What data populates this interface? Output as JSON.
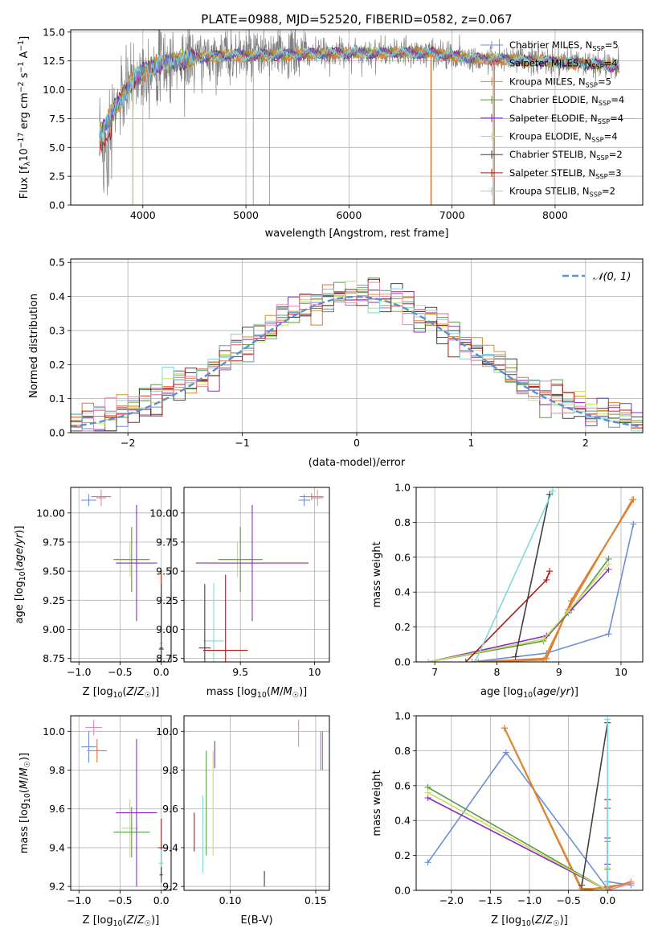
{
  "colors": {
    "chabrier_miles": "#6a8fd6",
    "salpeter_miles": "#e0763a",
    "kroupa_miles": "#d98c2e",
    "chabrier_elodie": "#5a9a4a",
    "salpeter_elodie": "#8a2bc2",
    "kroupa_elodie": "#c8e05a",
    "chabrier_stelib": "#404040",
    "salpeter_stelib": "#b01818",
    "kroupa_stelib": "#7fd8dc",
    "pink": "#e08bb0",
    "gauss": "#5b8fd6",
    "grid": "#b0b0b0",
    "data_gray": "#808080"
  },
  "chart_data": [
    {
      "id": "spectrum",
      "type": "line",
      "title": "PLATE=0988, MJD=52520, FIBERID=0582, z=0.067",
      "xlabel": "wavelength [Angstrom, rest frame]",
      "ylabel": "Flux [f_λ 10^-17 erg cm^-2 s^-1 A^-1]",
      "xlim": [
        3300,
        8850
      ],
      "ylim": [
        0,
        15.2
      ],
      "xticks": [
        4000,
        5000,
        6000,
        7000,
        8000
      ],
      "yticks": [
        0.0,
        2.5,
        5.0,
        7.5,
        10.0,
        12.5,
        15.0
      ],
      "legend_position": "right",
      "legend": [
        "Chabrier MILES, N_SSP=5",
        "Salpeter MILES, N_SSP=4",
        "Kroupa MILES, N_SSP=5",
        "Chabrier ELODIE, N_SSP=4",
        "Salpeter ELODIE, N_SSP=4",
        "Kroupa ELODIE, N_SSP=4",
        "Chabrier STELIB, N_SSP=2",
        "Salpeter STELIB, N_SSP=3",
        "Kroupa STELIB, N_SSP=2"
      ],
      "continuum": [
        [
          3580,
          6.3
        ],
        [
          3650,
          7.3
        ],
        [
          3720,
          8.2
        ],
        [
          3800,
          9.3
        ],
        [
          3900,
          10.8
        ],
        [
          4000,
          11.6
        ],
        [
          4100,
          12.1
        ],
        [
          4300,
          12.3
        ],
        [
          4500,
          12.8
        ],
        [
          4800,
          13.0
        ],
        [
          5200,
          13.0
        ],
        [
          5600,
          13.1
        ],
        [
          6000,
          13.2
        ],
        [
          6400,
          13.2
        ],
        [
          6800,
          13.2
        ],
        [
          7200,
          12.7
        ],
        [
          7600,
          12.6
        ],
        [
          8000,
          12.4
        ],
        [
          8400,
          12.2
        ],
        [
          8600,
          12.0
        ]
      ],
      "dropouts": [
        3900,
        5070,
        5230,
        6800,
        7400
      ]
    },
    {
      "id": "residuals",
      "type": "area",
      "xlabel": "(data-model)/error",
      "ylabel": "Normed distribution",
      "xlim": [
        -2.5,
        2.5
      ],
      "ylim": [
        0,
        0.51
      ],
      "xticks": [
        -2,
        -1,
        0,
        1,
        2
      ],
      "yticks": [
        0.0,
        0.1,
        0.2,
        0.3,
        0.4,
        0.5
      ],
      "legend": [
        "N(0,1)"
      ],
      "legend_position": "top-right",
      "bin_width": 0.1
    },
    {
      "id": "age_vs_Z",
      "type": "scatter",
      "xlabel": "Z [log10(Z/Z☉)]",
      "ylabel": "age  [log10(age/yr)]",
      "xlim": [
        -1.1,
        0.12
      ],
      "ylim": [
        8.72,
        10.22
      ],
      "xticks": [
        -1.0,
        -0.5,
        0.0
      ],
      "xticklabels": [
        "−1.0",
        "−0.5",
        "0.0"
      ],
      "yticks": [
        8.75,
        9.0,
        9.25,
        9.5,
        9.75,
        10.0
      ],
      "points": [
        {
          "c": "chabrier_miles",
          "x": -0.88,
          "y": 10.11,
          "xe": 0.09,
          "ye": 0.05
        },
        {
          "c": "salpeter_miles",
          "x": -0.73,
          "y": 10.14,
          "xe": 0.12,
          "ye": 0.03
        },
        {
          "c": "pink",
          "x": -0.73,
          "y": 10.13,
          "xe": 0.06,
          "ye": 0.07
        },
        {
          "c": "kroupa_elodie",
          "x": -0.38,
          "y": 9.6,
          "xe": 0.2,
          "ye": 0.15
        },
        {
          "c": "chabrier_elodie",
          "x": -0.36,
          "y": 9.6,
          "xe": 0.22,
          "ye": 0.28
        },
        {
          "c": "salpeter_elodie",
          "x": -0.3,
          "y": 9.57,
          "xe": 0.25,
          "ye": 0.5
        },
        {
          "c": "salpeter_stelib",
          "x": 0.0,
          "y": 8.83,
          "xe": 0.03,
          "ye": 0.65
        },
        {
          "c": "kroupa_stelib",
          "x": 0.0,
          "y": 8.88,
          "xe": 0.02,
          "ye": 0.5
        },
        {
          "c": "chabrier_stelib",
          "x": 0.0,
          "y": 8.84,
          "xe": 0.02,
          "ye": 0.55
        }
      ]
    },
    {
      "id": "age_vs_mass",
      "type": "scatter",
      "xlabel": "mass [log10(M/M☉)]",
      "xlim": [
        9.12,
        10.1
      ],
      "ylim": [
        8.72,
        10.22
      ],
      "xticks": [
        9.5,
        10.0
      ],
      "yticks": [
        8.75,
        9.0,
        9.25,
        9.5,
        9.75,
        10.0
      ],
      "points": [
        {
          "c": "salpeter_miles",
          "x": 9.98,
          "y": 10.14,
          "xe": 0.08,
          "ye": 0.03
        },
        {
          "c": "chabrier_miles",
          "x": 9.93,
          "y": 10.11,
          "xe": 0.04,
          "ye": 0.05
        },
        {
          "c": "pink",
          "x": 10.02,
          "y": 10.13,
          "xe": 0.04,
          "ye": 0.07
        },
        {
          "c": "kroupa_elodie",
          "x": 9.48,
          "y": 9.6,
          "xe": 0.13,
          "ye": 0.15
        },
        {
          "c": "chabrier_elodie",
          "x": 9.5,
          "y": 9.6,
          "xe": 0.15,
          "ye": 0.28
        },
        {
          "c": "salpeter_elodie",
          "x": 9.58,
          "y": 9.57,
          "xe": 0.38,
          "ye": 0.5
        },
        {
          "c": "kroupa_stelib",
          "x": 9.32,
          "y": 8.9,
          "xe": 0.07,
          "ye": 0.5
        },
        {
          "c": "chabrier_stelib",
          "x": 9.26,
          "y": 8.84,
          "xe": 0.04,
          "ye": 0.55
        },
        {
          "c": "salpeter_stelib",
          "x": 9.4,
          "y": 8.82,
          "xe": 0.15,
          "ye": 0.65
        }
      ]
    },
    {
      "id": "mass_weight_vs_age",
      "type": "line",
      "xlabel": "age  [log10(age/yr)]",
      "ylabel": "mass weight",
      "xlim": [
        6.7,
        10.35
      ],
      "ylim": [
        0,
        1.0
      ],
      "xticks": [
        7,
        8,
        9,
        10
      ],
      "yticks": [
        0.0,
        0.2,
        0.4,
        0.6,
        0.8,
        1.0
      ],
      "series": [
        {
          "c": "chabrier_miles",
          "x": [
            7.6,
            8.8,
            9.8,
            10.2
          ],
          "y": [
            0.0,
            0.05,
            0.16,
            0.79
          ]
        },
        {
          "c": "salpeter_miles",
          "x": [
            7.7,
            8.8,
            9.2,
            10.2
          ],
          "y": [
            0.0,
            0.02,
            0.35,
            0.93
          ]
        },
        {
          "c": "kroupa_miles",
          "x": [
            7.65,
            8.75,
            9.15,
            10.18
          ],
          "y": [
            0.0,
            0.01,
            0.3,
            0.93
          ]
        },
        {
          "c": "chabrier_elodie",
          "x": [
            6.9,
            8.75,
            9.15,
            9.8
          ],
          "y": [
            0.0,
            0.12,
            0.28,
            0.59
          ]
        },
        {
          "c": "salpeter_elodie",
          "x": [
            6.9,
            8.8,
            9.2,
            9.8
          ],
          "y": [
            0.0,
            0.15,
            0.3,
            0.53
          ]
        },
        {
          "c": "kroupa_elodie",
          "x": [
            6.9,
            8.75,
            9.15,
            9.8
          ],
          "y": [
            0.0,
            0.13,
            0.29,
            0.56
          ]
        },
        {
          "c": "chabrier_stelib",
          "x": [
            8.3,
            8.85
          ],
          "y": [
            0.03,
            0.96
          ]
        },
        {
          "c": "salpeter_stelib",
          "x": [
            7.5,
            8.8,
            8.85
          ],
          "y": [
            0.0,
            0.47,
            0.52
          ]
        },
        {
          "c": "kroupa_stelib",
          "x": [
            7.65,
            8.9
          ],
          "y": [
            0.0,
            0.98
          ]
        }
      ]
    },
    {
      "id": "mass_vs_Z",
      "type": "scatter",
      "xlabel": "Z [log10(Z/Z☉)]",
      "ylabel": "mass [log10(M/M☉)]",
      "xlim": [
        -1.1,
        0.12
      ],
      "ylim": [
        9.18,
        10.08
      ],
      "xticks": [
        -1.0,
        -0.5,
        0.0
      ],
      "xticklabels": [
        "−1.0",
        "−0.5",
        "0.0"
      ],
      "yticks": [
        9.2,
        9.4,
        9.6,
        9.8,
        10.0
      ],
      "points": [
        {
          "c": "chabrier_miles",
          "x": -0.88,
          "y": 9.92,
          "xe": 0.09,
          "ye": 0.08
        },
        {
          "c": "salpeter_miles",
          "x": -0.78,
          "y": 9.9,
          "xe": 0.12,
          "ye": 0.06
        },
        {
          "c": "pink",
          "x": -0.82,
          "y": 10.02,
          "xe": 0.1,
          "ye": 0.04
        },
        {
          "c": "kroupa_elodie",
          "x": -0.38,
          "y": 9.5,
          "xe": 0.1,
          "ye": 0.15
        },
        {
          "c": "chabrier_elodie",
          "x": -0.36,
          "y": 9.48,
          "xe": 0.22,
          "ye": 0.13
        },
        {
          "c": "salpeter_elodie",
          "x": -0.3,
          "y": 9.58,
          "xe": 0.25,
          "ye": 0.38
        },
        {
          "c": "salpeter_stelib",
          "x": 0.0,
          "y": 9.4,
          "xe": 0.04,
          "ye": 0.15
        },
        {
          "c": "kroupa_stelib",
          "x": 0.0,
          "y": 9.32,
          "xe": 0.03,
          "ye": 0.07
        },
        {
          "c": "chabrier_stelib",
          "x": 0.0,
          "y": 9.26,
          "xe": 0.02,
          "ye": 0.04
        }
      ]
    },
    {
      "id": "mass_vs_ebv",
      "type": "scatter",
      "xlabel": "E(B-V)",
      "xlim": [
        0.073,
        0.158
      ],
      "ylim": [
        9.18,
        10.08
      ],
      "xticks": [
        0.1,
        0.15
      ],
      "xticklabels": [
        "0.10",
        "0.15"
      ],
      "yticks": [
        9.2,
        9.4,
        9.6,
        9.8,
        10.0
      ],
      "points": [
        {
          "c": "salpeter_stelib",
          "x": 0.079,
          "y": 9.48,
          "ye": 0.1
        },
        {
          "c": "kroupa_stelib",
          "x": 0.084,
          "y": 9.47,
          "ye": 0.2
        },
        {
          "c": "chabrier_elodie",
          "x": 0.086,
          "y": 9.63,
          "ye": 0.27
        },
        {
          "c": "salpeter_elodie",
          "x": 0.091,
          "y": 9.88,
          "ye": 0.07
        },
        {
          "c": "kroupa_elodie",
          "x": 0.09,
          "y": 9.63,
          "ye": 0.27
        },
        {
          "c": "chabrier_stelib",
          "x": 0.12,
          "y": 9.24,
          "ye": 0.04
        },
        {
          "c": "pink",
          "x": 0.14,
          "y": 9.99,
          "ye": 0.07
        },
        {
          "c": "chabrier_miles",
          "x": 0.153,
          "y": 9.9,
          "ye": 0.1
        },
        {
          "c": "salpeter_miles",
          "x": 0.154,
          "y": 9.9,
          "ye": 0.1
        }
      ]
    },
    {
      "id": "mass_weight_vs_Z",
      "type": "line",
      "xlabel": "Z [log10(Z/Z☉)]",
      "ylabel": "mass weight",
      "xlim": [
        -2.45,
        0.45
      ],
      "ylim": [
        0,
        1.0
      ],
      "xticks": [
        -2.0,
        -1.5,
        -1.0,
        -0.5,
        0.0
      ],
      "xticklabels": [
        "−2.0",
        "−1.5",
        "−1.0",
        "−0.5",
        "0.0"
      ],
      "yticks": [
        0.0,
        0.2,
        0.4,
        0.6,
        0.8,
        1.0
      ],
      "series": [
        {
          "c": "chabrier_miles",
          "x": [
            -2.3,
            -1.3,
            0.0,
            0.0,
            0.3
          ],
          "y": [
            0.16,
            0.79,
            0.01,
            0.05,
            0.03
          ]
        },
        {
          "c": "salpeter_miles",
          "x": [
            -1.32,
            -0.33,
            0.0,
            0.3
          ],
          "y": [
            0.93,
            0.0,
            0.02,
            0.04
          ]
        },
        {
          "c": "kroupa_miles",
          "x": [
            -1.32,
            -0.33,
            0.0,
            0.3
          ],
          "y": [
            0.93,
            0.01,
            0.01,
            0.05
          ]
        },
        {
          "c": "chabrier_elodie",
          "x": [
            -2.3,
            0.0,
            0.0,
            0.0
          ],
          "y": [
            0.59,
            0.0,
            0.12,
            0.28
          ]
        },
        {
          "c": "salpeter_elodie",
          "x": [
            -2.3,
            0.0,
            0.0,
            0.0
          ],
          "y": [
            0.53,
            0.0,
            0.15,
            0.3
          ]
        },
        {
          "c": "kroupa_elodie",
          "x": [
            -2.3,
            0.0,
            0.0
          ],
          "y": [
            0.56,
            0.0,
            0.13
          ]
        },
        {
          "c": "chabrier_stelib",
          "x": [
            -0.33,
            0.0
          ],
          "y": [
            0.03,
            0.96
          ]
        },
        {
          "c": "salpeter_stelib",
          "x": [
            0.0,
            0.0,
            0.0
          ],
          "y": [
            0.0,
            0.47,
            0.52
          ]
        },
        {
          "c": "kroupa_stelib",
          "x": [
            0.0,
            0.0
          ],
          "y": [
            0.0,
            0.98
          ]
        },
        {
          "c": "pink",
          "x": [
            0.0,
            0.3
          ],
          "y": [
            0.0,
            0.04
          ]
        }
      ]
    }
  ]
}
